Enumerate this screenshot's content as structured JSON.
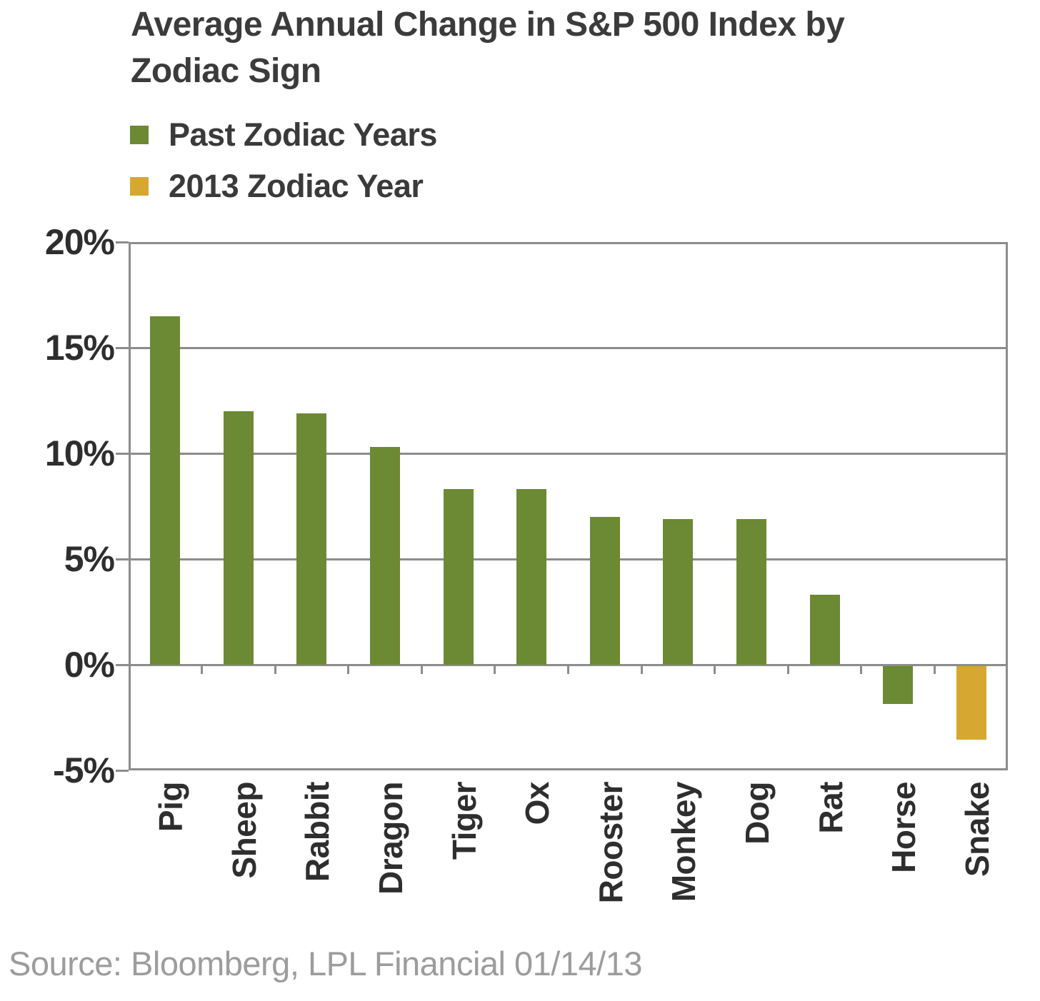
{
  "header": {
    "title": "Average Annual Change in S&P 500 Index by Zodiac Sign"
  },
  "legend": {
    "items": [
      {
        "label": "Past Zodiac Years",
        "series": "past"
      },
      {
        "label": "2013 Zodiac Year",
        "series": "y2013"
      }
    ]
  },
  "colors": {
    "past": "#6B8A33",
    "y2013": "#D6A832",
    "grid": "#8c8c8c",
    "text": "#3a3a3a",
    "source_text": "#9c9c9c"
  },
  "source": "Source: Bloomberg, LPL Financial 01/14/13",
  "chart_data": {
    "type": "bar",
    "title": "Average Annual Change in S&P 500 Index by Zodiac Sign",
    "categories": [
      "Pig",
      "Sheep",
      "Rabbit",
      "Dragon",
      "Tiger",
      "Ox",
      "Rooster",
      "Monkey",
      "Dog",
      "Rat",
      "Horse",
      "Snake"
    ],
    "values": [
      16.5,
      12.0,
      11.9,
      10.3,
      8.3,
      8.3,
      7.0,
      6.9,
      6.9,
      3.3,
      -1.8,
      -3.5
    ],
    "bar_series": [
      "past",
      "past",
      "past",
      "past",
      "past",
      "past",
      "past",
      "past",
      "past",
      "past",
      "past",
      "y2013"
    ],
    "series": [
      {
        "name": "Past Zodiac Years",
        "values": [
          16.5,
          12.0,
          11.9,
          10.3,
          8.3,
          8.3,
          7.0,
          6.9,
          6.9,
          3.3,
          -1.8,
          null
        ]
      },
      {
        "name": "2013 Zodiac Year",
        "values": [
          null,
          null,
          null,
          null,
          null,
          null,
          null,
          null,
          null,
          null,
          null,
          -3.5
        ]
      }
    ],
    "xlabel": "",
    "ylabel": "",
    "ylim": [
      -5,
      20
    ],
    "yticks": [
      {
        "value": 20,
        "label": "20%"
      },
      {
        "value": 15,
        "label": "15%"
      },
      {
        "value": 10,
        "label": "10%"
      },
      {
        "value": 5,
        "label": "5%"
      },
      {
        "value": 0,
        "label": "0%"
      },
      {
        "value": -5,
        "label": "-5%"
      }
    ],
    "grid": "horizontal",
    "legend_position": "top-left",
    "x_tick_labels_rotated": "90-ccw"
  }
}
